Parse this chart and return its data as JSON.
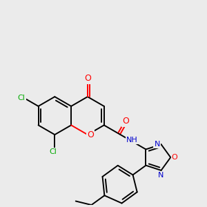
{
  "bg_color": "#ebebeb",
  "bond_color": "#000000",
  "atom_colors": {
    "O": "#ff0000",
    "N": "#0000cd",
    "Cl": "#00aa00",
    "C": "#000000",
    "H": "#7f7f7f"
  },
  "lw": 1.4
}
